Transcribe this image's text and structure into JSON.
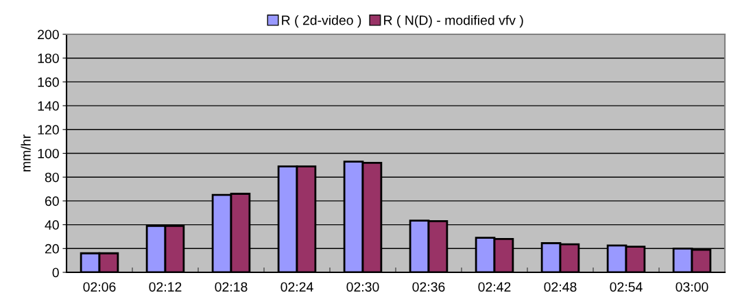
{
  "chart_data": {
    "type": "bar",
    "ylabel": "mm/hr",
    "categories": [
      "02:06",
      "02:12",
      "02:18",
      "02:24",
      "02:30",
      "02:36",
      "02:42",
      "02:48",
      "02:54",
      "03:00"
    ],
    "series": [
      {
        "name": "R ( 2d-video )",
        "color": "#9999ff",
        "values": [
          16,
          39,
          65,
          89,
          93,
          43.5,
          29,
          24.5,
          22.5,
          20
        ]
      },
      {
        "name": "R ( N(D) - modified vfv )",
        "color": "#993366",
        "values": [
          16,
          39,
          66,
          89,
          92,
          43,
          28,
          23.5,
          21.5,
          19
        ]
      }
    ],
    "ylim": [
      0,
      200
    ],
    "yticks": [
      0,
      20,
      40,
      60,
      80,
      100,
      120,
      140,
      160,
      180,
      200
    ],
    "grid": "y",
    "legend": "top"
  }
}
